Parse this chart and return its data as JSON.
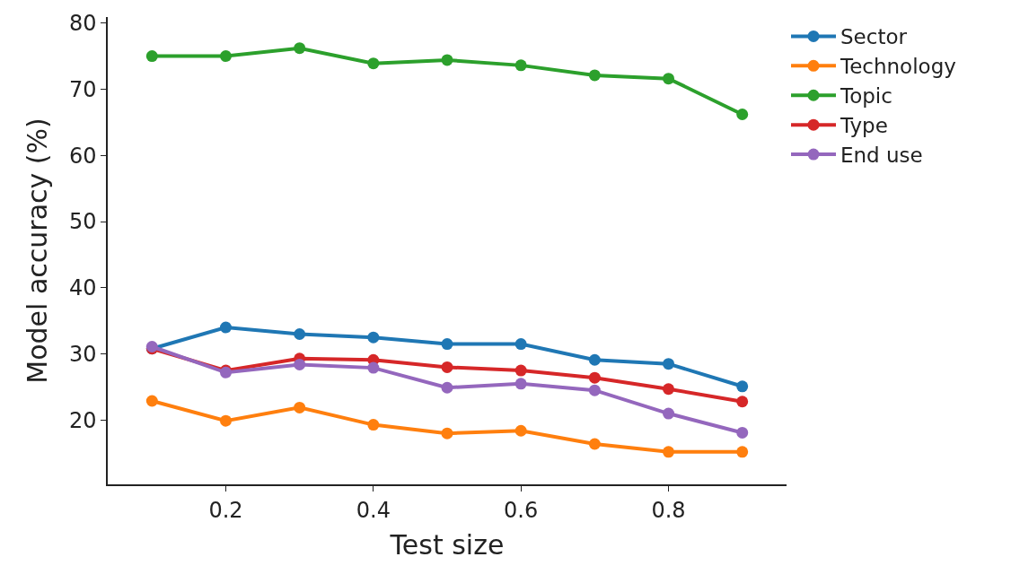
{
  "chart_data": {
    "type": "line",
    "xlabel": "Test size",
    "ylabel": "Model accuracy (%)",
    "x": [
      0.1,
      0.2,
      0.3,
      0.4,
      0.5,
      0.6,
      0.7,
      0.8,
      0.9
    ],
    "series": [
      {
        "name": "Sector",
        "color": "#1f77b4",
        "values": [
          30.8,
          34.0,
          33.0,
          32.5,
          31.5,
          31.5,
          29.1,
          28.5,
          25.1
        ]
      },
      {
        "name": "Technology",
        "color": "#ff7f0e",
        "values": [
          22.9,
          19.9,
          21.9,
          19.3,
          18.0,
          18.4,
          16.4,
          15.2,
          15.2
        ]
      },
      {
        "name": "Topic",
        "color": "#2ca02c",
        "values": [
          75.0,
          75.0,
          76.2,
          73.9,
          74.4,
          73.6,
          72.1,
          71.6,
          66.2
        ]
      },
      {
        "name": "Type",
        "color": "#d62728",
        "values": [
          30.8,
          27.5,
          29.3,
          29.1,
          28.0,
          27.5,
          26.4,
          24.7,
          22.8
        ]
      },
      {
        "name": "End use",
        "color": "#9467bd",
        "values": [
          31.1,
          27.2,
          28.4,
          27.9,
          24.9,
          25.5,
          24.5,
          21.0,
          18.1
        ]
      }
    ],
    "xlim": [
      0.04,
      0.96
    ],
    "ylim": [
      10.3,
      80.9
    ],
    "xticks": [
      0.2,
      0.4,
      0.6,
      0.8
    ],
    "yticks": [
      20,
      30,
      40,
      50,
      60,
      70,
      80
    ],
    "legend": "top right",
    "marker": "circle",
    "line_style": "solid"
  }
}
